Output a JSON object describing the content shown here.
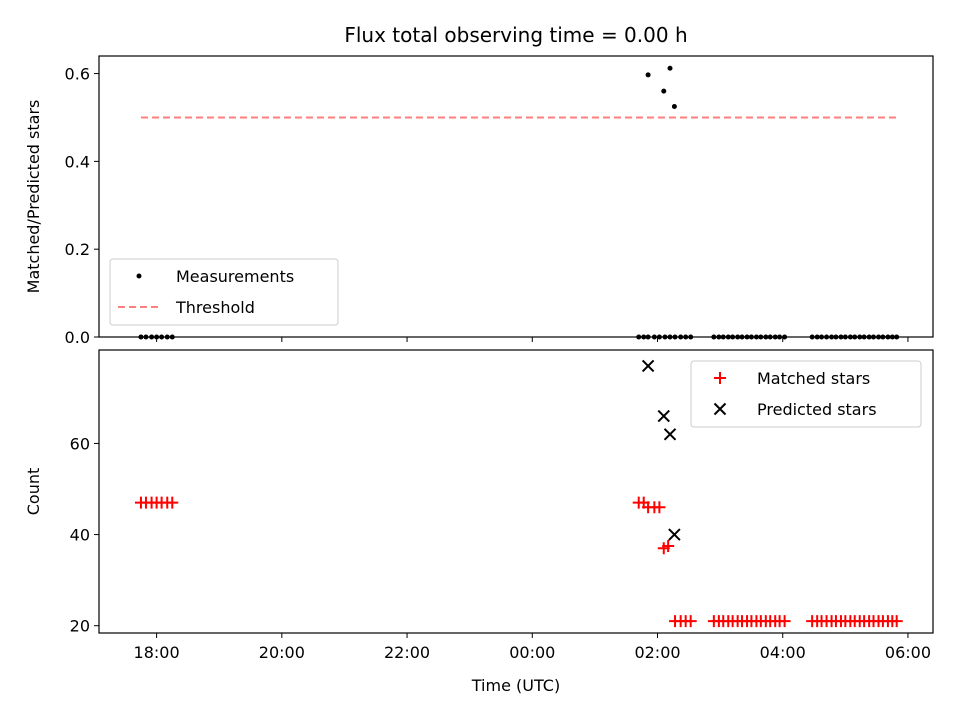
{
  "chart_data": [
    {
      "type": "scatter",
      "title": "Flux total observing time = 0.00 h",
      "xlabel": "",
      "ylabel": "Matched/Predicted stars",
      "xlim": [
        17.08,
        30.4
      ],
      "ylim": [
        0,
        0.64
      ],
      "yticks": [
        0.0,
        0.2,
        0.4,
        0.6
      ],
      "ytick_labels": [
        "0.0",
        "0.2",
        "0.4",
        "0.6"
      ],
      "xticks": [
        18,
        20,
        22,
        24,
        26,
        28,
        30
      ],
      "show_xtick_labels": false,
      "legend": {
        "position": "lower-left",
        "entries": [
          "Measurements",
          "Threshold"
        ]
      },
      "series": [
        {
          "name": "Measurements",
          "marker": "dot",
          "color": "#000000",
          "x": [
            17.75,
            17.83,
            17.92,
            18.0,
            18.08,
            18.17,
            18.25,
            25.7,
            25.78,
            25.85,
            25.95,
            26.03,
            26.12,
            26.2,
            26.28,
            26.37,
            26.45,
            26.53,
            26.9,
            26.98,
            27.05,
            27.13,
            27.2,
            27.28,
            27.35,
            27.43,
            27.5,
            27.58,
            27.65,
            27.73,
            27.8,
            27.88,
            27.95,
            28.03,
            28.47,
            28.55,
            28.62,
            28.7,
            28.78,
            28.85,
            28.93,
            29.0,
            29.08,
            29.15,
            29.23,
            29.3,
            29.38,
            29.45,
            29.53,
            29.6,
            29.68,
            29.75,
            29.82,
            25.85,
            26.1,
            26.2,
            26.27
          ],
          "y": [
            0,
            0,
            0,
            0,
            0,
            0,
            0,
            0,
            0,
            0,
            0,
            0,
            0,
            0,
            0,
            0,
            0,
            0,
            0,
            0,
            0,
            0,
            0,
            0,
            0,
            0,
            0,
            0,
            0,
            0,
            0,
            0,
            0,
            0,
            0,
            0,
            0,
            0,
            0,
            0,
            0,
            0,
            0,
            0,
            0,
            0,
            0,
            0,
            0,
            0,
            0,
            0,
            0,
            0.597,
            0.56,
            0.612,
            0.525
          ]
        },
        {
          "name": "Threshold",
          "type": "line",
          "style": "dashed",
          "color": "#ff7f7f",
          "x": [
            17.75,
            29.82
          ],
          "y": [
            0.5,
            0.5
          ]
        }
      ]
    },
    {
      "type": "scatter",
      "title": "",
      "xlabel": "Time (UTC)",
      "ylabel": "Count",
      "xlim": [
        17.08,
        30.4
      ],
      "ylim": [
        18.4,
        80.5
      ],
      "yticks": [
        20,
        40,
        60
      ],
      "ytick_labels": [
        "20",
        "40",
        "60"
      ],
      "xticks": [
        18,
        20,
        22,
        24,
        26,
        28,
        30
      ],
      "xtick_labels": [
        "18:00",
        "20:00",
        "22:00",
        "00:00",
        "02:00",
        "04:00",
        "06:00"
      ],
      "legend": {
        "position": "top-right",
        "entries": [
          "Matched stars",
          "Predicted stars"
        ]
      },
      "series": [
        {
          "name": "Matched stars",
          "marker": "plus",
          "color": "#ff0000",
          "x": [
            17.75,
            17.83,
            17.92,
            18.0,
            18.08,
            18.17,
            18.25,
            25.7,
            25.78,
            25.85,
            25.95,
            26.03,
            26.1,
            26.17,
            26.28,
            26.37,
            26.45,
            26.53,
            26.9,
            26.98,
            27.05,
            27.13,
            27.2,
            27.28,
            27.35,
            27.43,
            27.5,
            27.58,
            27.65,
            27.73,
            27.8,
            27.88,
            27.95,
            28.03,
            28.47,
            28.55,
            28.62,
            28.7,
            28.78,
            28.85,
            28.93,
            29.0,
            29.08,
            29.15,
            29.23,
            29.3,
            29.38,
            29.45,
            29.53,
            29.6,
            29.68,
            29.75,
            29.82
          ],
          "y": [
            47,
            47,
            47,
            47,
            47,
            47,
            47,
            47,
            47,
            46,
            46,
            46,
            37,
            37.5,
            21,
            21,
            21,
            21,
            21,
            21,
            21,
            21,
            21,
            21,
            21,
            21,
            21,
            21,
            21,
            21,
            21,
            21,
            21,
            21,
            21,
            21,
            21,
            21,
            21,
            21,
            21,
            21,
            21,
            21,
            21,
            21,
            21,
            21,
            21,
            21,
            21,
            21,
            21
          ]
        },
        {
          "name": "Predicted stars",
          "marker": "x",
          "color": "#000000",
          "x": [
            25.85,
            26.1,
            26.2,
            26.27
          ],
          "y": [
            77,
            66,
            62,
            40
          ]
        }
      ]
    }
  ]
}
